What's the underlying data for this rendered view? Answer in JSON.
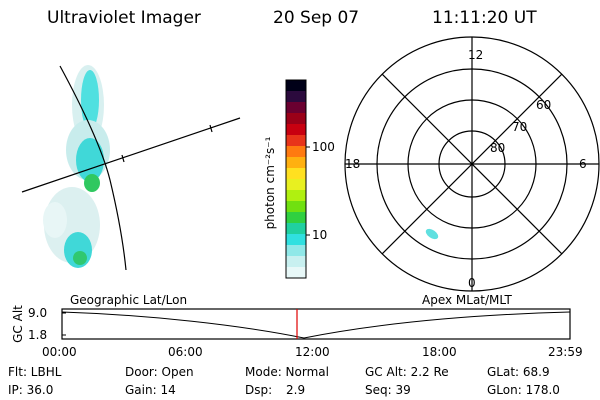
{
  "header": {
    "instrument": "Ultraviolet Imager",
    "date": "20 Sep 07",
    "time": "11:11:20 UT"
  },
  "colorbar": {
    "label": "photon cm⁻²s⁻¹",
    "ticks": [
      "100",
      "10"
    ],
    "colors": [
      "#000018",
      "#2b0a3d",
      "#6a0030",
      "#9a0018",
      "#c80010",
      "#e8341a",
      "#ff7a10",
      "#ffb010",
      "#ffe020",
      "#e8f020",
      "#b0f010",
      "#70e010",
      "#30d040",
      "#20d0a0",
      "#30e0e0",
      "#90e8e8",
      "#c8f0f0",
      "#e8f8f8"
    ]
  },
  "polar": {
    "mlt_labels": {
      "top": "12",
      "bottom": "0",
      "left": "18",
      "right": "6"
    },
    "lat_labels": [
      "60",
      "70",
      "80"
    ]
  },
  "timeline": {
    "left_label": "Geographic Lat/Lon",
    "right_label": "Apex MLat/MLT",
    "axis_title": "GC Alt",
    "y_ticks": [
      "9.0",
      "1.8"
    ],
    "x_ticks": [
      "00:00",
      "06:00",
      "12:00",
      "18:00",
      "23:59"
    ]
  },
  "footer": {
    "flt": "Flt: LBHL",
    "ip": "IP: 36.0",
    "door": "Door: Open",
    "gain": "Gain: 14",
    "mode": "Mode: Normal",
    "dsp_label": "Dsp:",
    "dsp_value": "2.9",
    "gc_alt": "GC Alt: 2.2 Re",
    "seq": "Seq: 39",
    "glat": "GLat:  68.9",
    "glon": "GLon: 178.0"
  }
}
